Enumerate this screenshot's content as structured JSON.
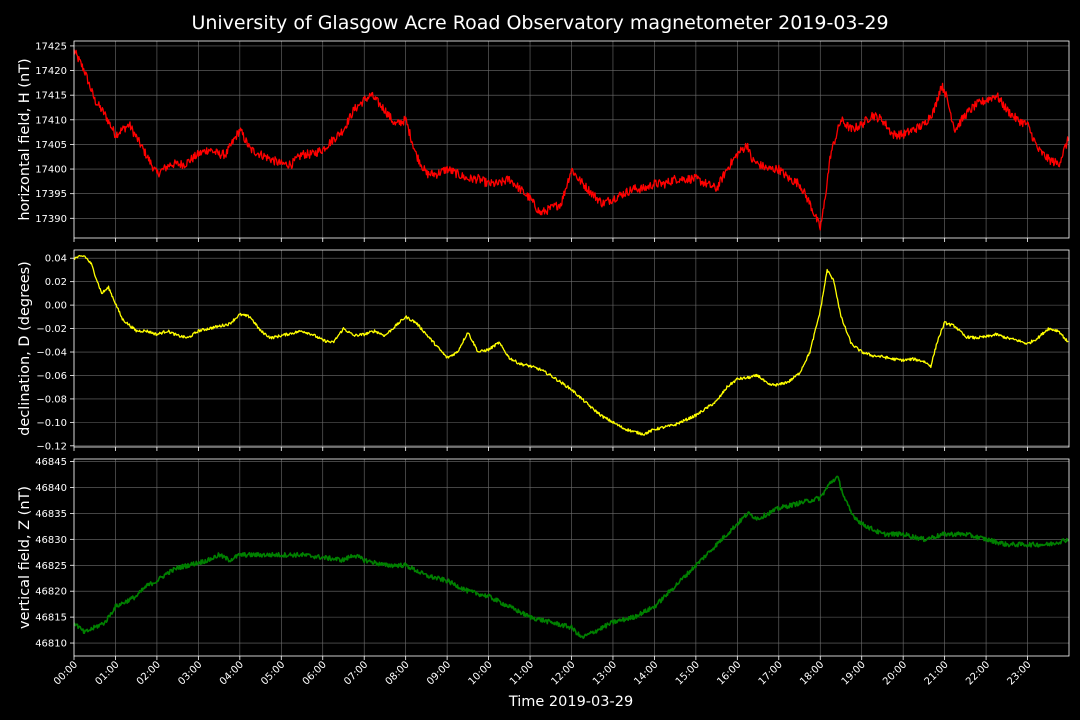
{
  "chart_data": {
    "type": "line",
    "title": "University of Glasgow Acre Road Observatory magnetometer 2019-03-29",
    "xlabel": "Time 2019-03-29",
    "x_ticks": [
      "00:00",
      "01:00",
      "02:00",
      "03:00",
      "04:00",
      "05:00",
      "06:00",
      "07:00",
      "08:00",
      "09:00",
      "10:00",
      "11:00",
      "12:00",
      "13:00",
      "14:00",
      "15:00",
      "16:00",
      "17:00",
      "18:00",
      "19:00",
      "20:00",
      "21:00",
      "22:00",
      "23:00"
    ],
    "xlim": [
      "00:00",
      "24:00"
    ],
    "grid": true,
    "panels": [
      {
        "ylabel": "horizontal field, H (nT)",
        "color": "#ff0000",
        "ylim": [
          17386,
          17426
        ],
        "y_ticks": [
          17390,
          17395,
          17400,
          17405,
          17410,
          17415,
          17420,
          17425
        ],
        "y_tick_labels": [
          "17390",
          "17395",
          "17400",
          "17405",
          "17410",
          "17415",
          "17420",
          "17425"
        ],
        "x": [
          "00:00",
          "00:15",
          "00:30",
          "00:45",
          "01:00",
          "01:10",
          "01:20",
          "01:40",
          "02:00",
          "02:20",
          "02:40",
          "03:00",
          "03:15",
          "03:30",
          "03:40",
          "04:00",
          "04:15",
          "04:30",
          "04:45",
          "05:00",
          "05:15",
          "05:30",
          "05:45",
          "06:00",
          "06:15",
          "06:30",
          "06:45",
          "07:00",
          "07:10",
          "07:30",
          "07:45",
          "08:00",
          "08:15",
          "08:30",
          "08:45",
          "09:00",
          "09:15",
          "09:30",
          "09:45",
          "10:00",
          "10:15",
          "10:30",
          "10:45",
          "11:00",
          "11:15",
          "11:30",
          "11:45",
          "12:00",
          "12:10",
          "12:30",
          "12:45",
          "13:00",
          "13:15",
          "13:30",
          "13:45",
          "14:00",
          "14:15",
          "14:30",
          "14:45",
          "15:00",
          "15:15",
          "15:30",
          "15:45",
          "16:00",
          "16:15",
          "16:20",
          "16:30",
          "16:45",
          "17:00",
          "17:15",
          "17:30",
          "17:45",
          "18:00",
          "18:05",
          "18:15",
          "18:30",
          "18:45",
          "19:00",
          "19:15",
          "19:30",
          "19:45",
          "20:00",
          "20:15",
          "20:30",
          "20:45",
          "20:55",
          "21:00",
          "21:15",
          "21:30",
          "21:45",
          "22:00",
          "22:15",
          "22:30",
          "22:45",
          "23:00",
          "23:15",
          "23:30",
          "23:45",
          "23:59"
        ],
        "values": [
          17424,
          17420,
          17414,
          17411,
          17407,
          17408,
          17409,
          17404,
          17399,
          17401,
          17401,
          17403,
          17404,
          17403,
          17403,
          17408,
          17404,
          17403,
          17402,
          17401,
          17401,
          17403,
          17403,
          17404,
          17406,
          17408,
          17412,
          17414,
          17415,
          17412,
          17409,
          17410,
          17403,
          17399,
          17399,
          17400,
          17399,
          17398,
          17398,
          17397,
          17397,
          17398,
          17396,
          17394,
          17391,
          17392,
          17393,
          17400,
          17398,
          17395,
          17393,
          17394,
          17395,
          17396,
          17396,
          17397,
          17397,
          17398,
          17398,
          17398,
          17397,
          17396,
          17400,
          17403,
          17405,
          17402,
          17401,
          17400,
          17400,
          17398,
          17397,
          17393,
          17388,
          17392,
          17403,
          17410,
          17408,
          17409,
          17411,
          17410,
          17407,
          17407,
          17408,
          17409,
          17412,
          17417,
          17416,
          17408,
          17411,
          17413,
          17414,
          17415,
          17412,
          17410,
          17409,
          17404,
          17402,
          17401,
          17406
        ]
      },
      {
        "ylabel": "declination, D (degrees)",
        "color": "#ffff00",
        "ylim": [
          -0.121,
          0.047
        ],
        "y_ticks": [
          -0.12,
          -0.1,
          -0.08,
          -0.06,
          -0.04,
          -0.02,
          0.0,
          0.02,
          0.04
        ],
        "y_tick_labels": [
          "−0.12",
          "−0.10",
          "−0.08",
          "−0.06",
          "−0.04",
          "−0.02",
          "0.00",
          "0.02",
          "0.04"
        ],
        "x": [
          "00:00",
          "00:15",
          "00:25",
          "00:40",
          "00:50",
          "01:10",
          "01:30",
          "01:45",
          "02:00",
          "02:15",
          "02:30",
          "02:45",
          "03:00",
          "03:15",
          "03:30",
          "03:45",
          "04:00",
          "04:15",
          "04:30",
          "04:45",
          "05:00",
          "05:15",
          "05:30",
          "05:45",
          "06:00",
          "06:15",
          "06:30",
          "06:45",
          "07:00",
          "07:15",
          "07:30",
          "07:45",
          "08:00",
          "08:15",
          "08:30",
          "08:45",
          "09:00",
          "09:15",
          "09:30",
          "09:45",
          "10:00",
          "10:15",
          "10:30",
          "10:45",
          "11:00",
          "11:15",
          "11:30",
          "11:45",
          "12:00",
          "12:15",
          "12:30",
          "12:45",
          "13:00",
          "13:15",
          "13:30",
          "13:45",
          "14:00",
          "14:15",
          "14:30",
          "14:45",
          "15:00",
          "15:15",
          "15:30",
          "15:45",
          "16:00",
          "16:15",
          "16:30",
          "16:45",
          "17:00",
          "17:15",
          "17:30",
          "17:45",
          "18:00",
          "18:10",
          "18:20",
          "18:30",
          "18:45",
          "19:00",
          "19:15",
          "19:30",
          "19:45",
          "20:00",
          "20:15",
          "20:30",
          "20:40",
          "20:50",
          "21:00",
          "21:15",
          "21:30",
          "21:45",
          "22:00",
          "22:15",
          "22:30",
          "22:45",
          "23:00",
          "23:15",
          "23:30",
          "23:45",
          "23:59"
        ],
        "values": [
          0.04,
          0.042,
          0.035,
          0.01,
          0.015,
          -0.012,
          -0.022,
          -0.022,
          -0.025,
          -0.022,
          -0.026,
          -0.028,
          -0.022,
          -0.02,
          -0.018,
          -0.016,
          -0.008,
          -0.01,
          -0.022,
          -0.028,
          -0.026,
          -0.024,
          -0.022,
          -0.025,
          -0.03,
          -0.032,
          -0.02,
          -0.026,
          -0.025,
          -0.022,
          -0.026,
          -0.018,
          -0.01,
          -0.015,
          -0.025,
          -0.035,
          -0.045,
          -0.04,
          -0.023,
          -0.04,
          -0.038,
          -0.032,
          -0.045,
          -0.05,
          -0.052,
          -0.055,
          -0.06,
          -0.066,
          -0.072,
          -0.08,
          -0.088,
          -0.095,
          -0.1,
          -0.105,
          -0.108,
          -0.11,
          -0.106,
          -0.104,
          -0.102,
          -0.098,
          -0.094,
          -0.088,
          -0.082,
          -0.07,
          -0.063,
          -0.062,
          -0.06,
          -0.068,
          -0.068,
          -0.065,
          -0.058,
          -0.04,
          -0.005,
          0.03,
          0.02,
          -0.01,
          -0.033,
          -0.04,
          -0.043,
          -0.044,
          -0.046,
          -0.047,
          -0.046,
          -0.048,
          -0.052,
          -0.03,
          -0.015,
          -0.018,
          -0.027,
          -0.028,
          -0.027,
          -0.025,
          -0.028,
          -0.03,
          -0.033,
          -0.028,
          -0.02,
          -0.022,
          -0.032
        ]
      },
      {
        "ylabel": "vertical field, Z (nT)",
        "color": "#008000",
        "ylim": [
          46807.5,
          46845.5
        ],
        "y_ticks": [
          46810,
          46815,
          46820,
          46825,
          46830,
          46835,
          46840,
          46845
        ],
        "y_tick_labels": [
          "46810",
          "46815",
          "46820",
          "46825",
          "46830",
          "46835",
          "46840",
          "46845"
        ],
        "x": [
          "00:00",
          "00:15",
          "00:30",
          "00:45",
          "01:00",
          "01:15",
          "01:30",
          "01:45",
          "02:00",
          "02:15",
          "02:30",
          "02:45",
          "03:00",
          "03:15",
          "03:30",
          "03:45",
          "04:00",
          "04:30",
          "05:00",
          "05:30",
          "06:00",
          "06:30",
          "06:45",
          "07:00",
          "07:30",
          "08:00",
          "08:30",
          "09:00",
          "09:30",
          "10:00",
          "10:30",
          "11:00",
          "11:30",
          "12:00",
          "12:15",
          "12:30",
          "13:00",
          "13:30",
          "14:00",
          "14:30",
          "15:00",
          "15:30",
          "16:00",
          "16:15",
          "16:30",
          "17:00",
          "17:30",
          "18:00",
          "18:15",
          "18:25",
          "18:35",
          "18:45",
          "19:00",
          "19:30",
          "20:00",
          "20:30",
          "21:00",
          "21:30",
          "22:00",
          "22:30",
          "23:00",
          "23:30",
          "23:59"
        ],
        "values": [
          46814,
          46812,
          46813,
          46814,
          46817,
          46818,
          46819,
          46821,
          46822,
          46823.5,
          46824.5,
          46825,
          46825.5,
          46826,
          46827,
          46826,
          46827,
          46827,
          46827,
          46827,
          46826.5,
          46826,
          46827,
          46826,
          46825,
          46825,
          46823,
          46822,
          46820,
          46819,
          46817,
          46815,
          46814,
          46813,
          46811,
          46812,
          46814,
          46815,
          46817,
          46821,
          46825,
          46829,
          46833,
          46835,
          46834,
          46836,
          46837,
          46838,
          46841,
          46842,
          46838,
          46835,
          46833,
          46831,
          46831,
          46830,
          46831,
          46831,
          46830,
          46829,
          46829,
          46829,
          46830
        ]
      }
    ]
  }
}
